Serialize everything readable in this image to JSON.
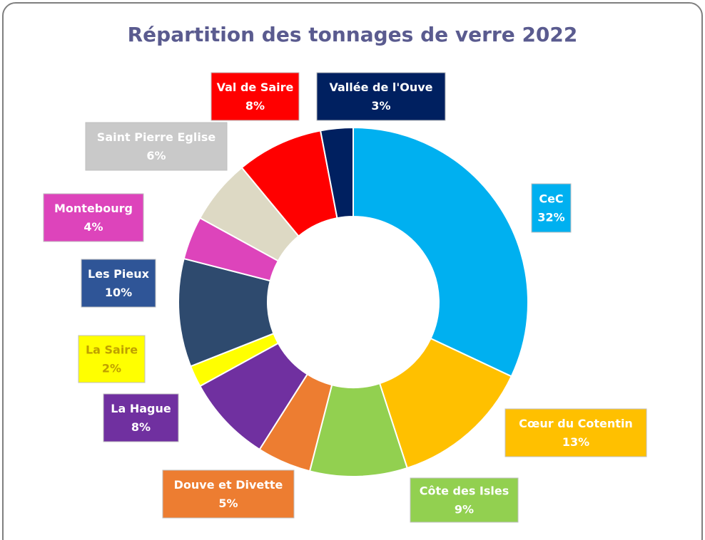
{
  "chart_data": {
    "type": "donut",
    "title": "Répartition des tonnages de verre 2022",
    "categories": [
      "CeC",
      "Cœur du Cotentin",
      "Côte des Isles",
      "Douve et Divette",
      "La Hague",
      "La Saire",
      "Les Pieux",
      "Montebourg",
      "Saint Pierre Eglise",
      "Val de Saire",
      "Vallée de l'Ouve"
    ],
    "values": [
      32,
      13,
      9,
      5,
      8,
      2,
      10,
      4,
      6,
      8,
      3
    ],
    "value_labels": [
      "32%",
      "13%",
      "9%",
      "5%",
      "8%",
      "2%",
      "10%",
      "4%",
      "6%",
      "8%",
      "3%"
    ],
    "colors": [
      "#00b0f0",
      "#ffc000",
      "#92d050",
      "#ed7d31",
      "#7030a0",
      "#ffff00",
      "#2e4a6e",
      "#dd44bb",
      "#ddd9c4",
      "#ff0000",
      "#002060"
    ],
    "label_colors": [
      "#00b0f0",
      "#ffc000",
      "#92d050",
      "#ed7d31",
      "#7030a0",
      "#ffff00",
      "#2f5597",
      "#dd44bb",
      "#c9c9c9",
      "#ff0000",
      "#002060"
    ],
    "label_text_colors": [
      "#ffffff",
      "#ffffff",
      "#ffffff",
      "#ffffff",
      "#ffffff",
      "#bfa000",
      "#ffffff",
      "#ffffff",
      "#ffffff",
      "#ffffff",
      "#ffffff"
    ]
  }
}
